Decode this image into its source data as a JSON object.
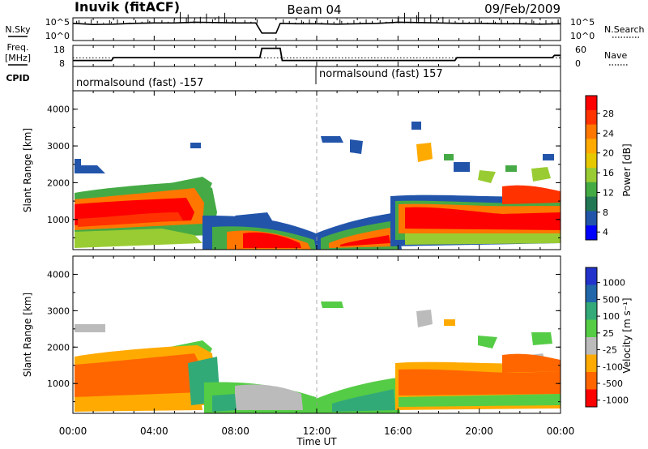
{
  "header": {
    "station": "Inuvik (fitACF)",
    "beam": "Beam 04",
    "date": "09/Feb/2009"
  },
  "ancillary": {
    "nsky_label": "N.Sky",
    "nsearch_label": "N.Search",
    "freq_label_1": "Freq.",
    "freq_label_2": "[MHz]",
    "nave_label": "Nave",
    "cpid_label": "CPID",
    "noise_ticks": [
      "10^5",
      "10^0"
    ],
    "freq_ticks": [
      "18",
      "8"
    ],
    "nave_ticks": [
      "60",
      "0"
    ],
    "cpid_left": "normalsound (fast) -157",
    "cpid_right": "normalsound (fast) 157"
  },
  "chart_data": [
    {
      "type": "line",
      "panel": "noise",
      "x_range": [
        "00:00",
        "24:00"
      ],
      "series": [
        {
          "name": "N.Sky",
          "x": [
            0,
            1,
            2,
            3,
            4,
            5,
            6,
            7,
            8,
            9,
            9.3,
            10,
            10.2,
            11,
            12,
            13,
            14,
            15,
            16,
            17,
            18,
            19,
            20,
            21,
            22,
            23,
            24
          ],
          "values": [
            4.0,
            3.7,
            3.8,
            4.0,
            4.1,
            4.1,
            4.3,
            4.2,
            4.1,
            4.1,
            1.5,
            1.5,
            4.0,
            3.9,
            3.9,
            3.8,
            3.9,
            4.0,
            4.3,
            4.2,
            4.1,
            4.0,
            4.0,
            3.9,
            3.9,
            3.8,
            3.9
          ]
        }
      ]
    },
    {
      "type": "line",
      "panel": "frequency",
      "x_range": [
        "00:00",
        "24:00"
      ],
      "series": [
        {
          "name": "Freq.",
          "x": [
            0,
            1.9,
            2.0,
            9.2,
            9.3,
            10.2,
            10.3,
            18.8,
            18.9,
            23.6,
            23.7,
            24
          ],
          "values": [
            10.8,
            10.8,
            12.3,
            12.3,
            17.3,
            17.3,
            10.8,
            10.8,
            12.3,
            12.3,
            13.5,
            13.5
          ]
        },
        {
          "name": "Nave",
          "x": [
            0,
            24
          ],
          "values": [
            25,
            25
          ]
        }
      ]
    },
    {
      "type": "heatmap",
      "panel": "power",
      "ylabel": "Slant Range [km]",
      "ylim": [
        180,
        4500
      ],
      "y_ticks": [
        "1000",
        "2000",
        "3000",
        "4000"
      ],
      "colorbar_label": "Power [dB]",
      "colorbar_ticks": [
        "28",
        "24",
        "20",
        "16",
        "12",
        "8",
        "4"
      ],
      "colorbar_colors": [
        "#ff0000",
        "#ff3300",
        "#ff7700",
        "#ffaa00",
        "#e6c800",
        "#99cc33",
        "#44aa44",
        "#227755",
        "#2255aa",
        "#0000ff"
      ]
    },
    {
      "type": "heatmap",
      "panel": "velocity",
      "ylabel": "Slant Range [km]",
      "ylim": [
        180,
        4500
      ],
      "y_ticks": [
        "1000",
        "2000",
        "3000",
        "4000"
      ],
      "colorbar_label": "Velocity [m s⁻¹]",
      "colorbar_ticks": [
        "1000",
        "500",
        "100",
        "25",
        "-25",
        "-100",
        "-500",
        "-1000"
      ],
      "colorbar_colors": [
        "#2233cc",
        "#2266aa",
        "#33aa77",
        "#55cc44",
        "#bbbbbb",
        "#ffaa00",
        "#ff6600",
        "#ff0000"
      ]
    }
  ],
  "x_axis": {
    "ticks": [
      "00:00",
      "04:00",
      "08:00",
      "12:00",
      "16:00",
      "20:00",
      "00:00"
    ],
    "label": "Time UT"
  }
}
